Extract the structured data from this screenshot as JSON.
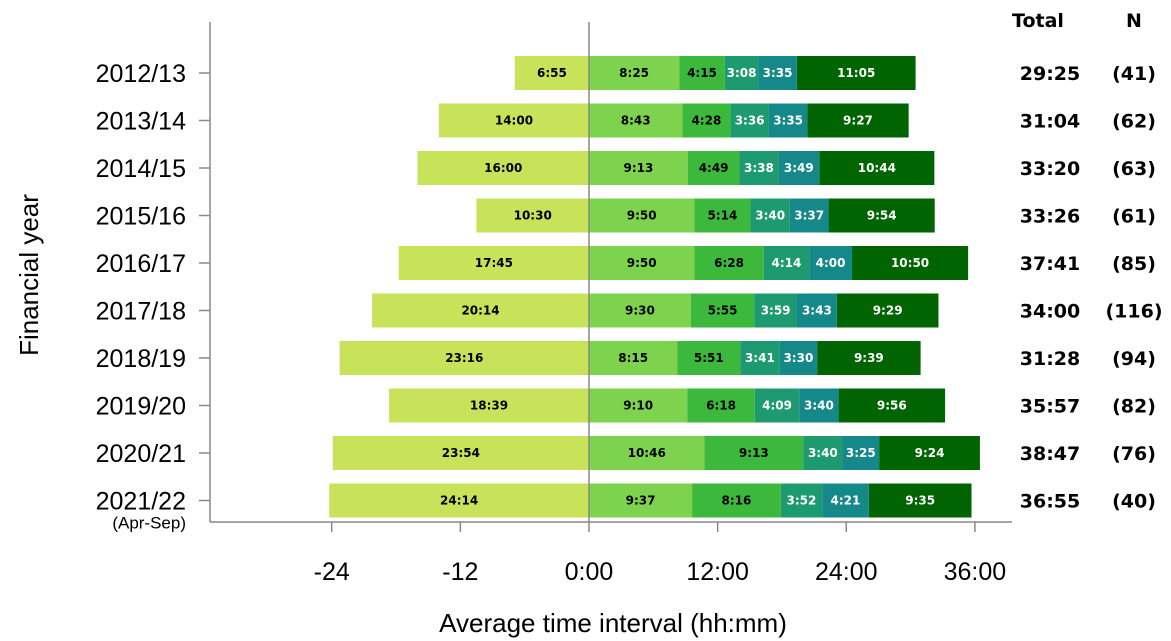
{
  "chart_data": {
    "type": "bar",
    "orientation": "horizontal",
    "stacked": true,
    "ylabel": "Financial year",
    "xlabel": "Average time interval (hh:mm)",
    "xlim": [
      -30,
      40
    ],
    "xticks": [
      {
        "value": -24,
        "label": "-24"
      },
      {
        "value": -12,
        "label": "-12"
      },
      {
        "value": 0,
        "label": "0:00"
      },
      {
        "value": 12,
        "label": "12:00"
      },
      {
        "value": 24,
        "label": "24:00"
      },
      {
        "value": 36,
        "label": "36:00"
      }
    ],
    "columns": {
      "total": "Total",
      "n": "N"
    },
    "segment_colors": [
      "#c8e35a",
      "#7ed34e",
      "#3cb93c",
      "#1e9a70",
      "#15888a",
      "#006400"
    ],
    "rows": [
      {
        "year": "2012/13",
        "sub": "",
        "segments": [
          "6:55",
          "8:25",
          "4:15",
          "3:08",
          "3:35",
          "11:05"
        ],
        "total": "29:25",
        "n": "(41)"
      },
      {
        "year": "2013/14",
        "sub": "",
        "segments": [
          "14:00",
          "8:43",
          "4:28",
          "3:36",
          "3:35",
          "9:27"
        ],
        "total": "31:04",
        "n": "(62)"
      },
      {
        "year": "2014/15",
        "sub": "",
        "segments": [
          "16:00",
          "9:13",
          "4:49",
          "3:38",
          "3:49",
          "10:44"
        ],
        "total": "33:20",
        "n": "(63)"
      },
      {
        "year": "2015/16",
        "sub": "",
        "segments": [
          "10:30",
          "9:50",
          "5:14",
          "3:40",
          "3:37",
          "9:54"
        ],
        "total": "33:26",
        "n": "(61)"
      },
      {
        "year": "2016/17",
        "sub": "",
        "segments": [
          "17:45",
          "9:50",
          "6:28",
          "4:14",
          "4:00",
          "10:50"
        ],
        "total": "37:41",
        "n": "(85)"
      },
      {
        "year": "2017/18",
        "sub": "",
        "segments": [
          "20:14",
          "9:30",
          "5:55",
          "3:59",
          "3:43",
          "9:29"
        ],
        "total": "34:00",
        "n": "(116)"
      },
      {
        "year": "2018/19",
        "sub": "",
        "segments": [
          "23:16",
          "8:15",
          "5:51",
          "3:41",
          "3:30",
          "9:39"
        ],
        "total": "31:28",
        "n": "(94)"
      },
      {
        "year": "2019/20",
        "sub": "",
        "segments": [
          "18:39",
          "9:10",
          "6:18",
          "4:09",
          "3:40",
          "9:56"
        ],
        "total": "35:57",
        "n": "(82)"
      },
      {
        "year": "2020/21",
        "sub": "",
        "segments": [
          "23:54",
          "10:46",
          "9:13",
          "3:40",
          "3:25",
          "9:24"
        ],
        "total": "38:47",
        "n": "(76)"
      },
      {
        "year": "2021/22",
        "sub": "(Apr-Sep)",
        "segments": [
          "24:14",
          "9:37",
          "8:16",
          "3:52",
          "4:21",
          "9:35"
        ],
        "total": "36:55",
        "n": "(40)"
      }
    ]
  }
}
